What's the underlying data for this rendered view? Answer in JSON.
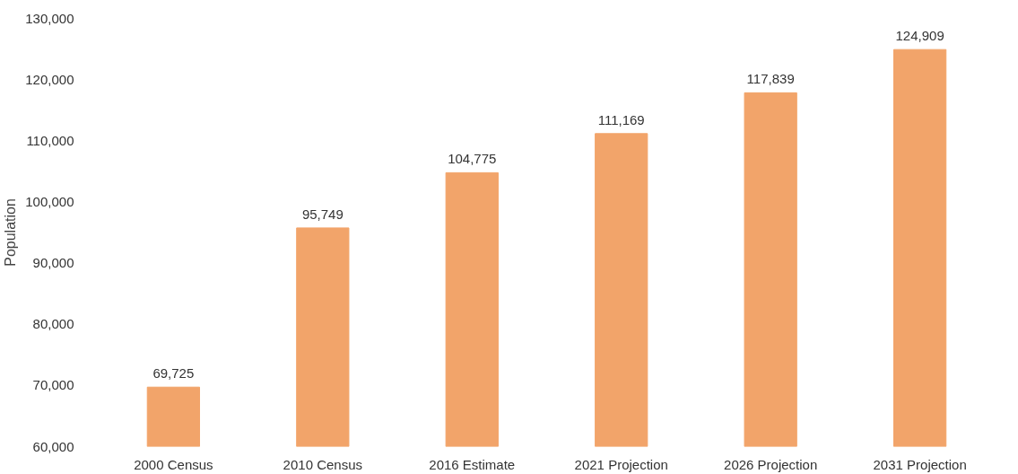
{
  "chart_data": {
    "type": "bar",
    "ylabel": "Population",
    "categories": [
      "2000 Census",
      "2010 Census",
      "2016 Estimate",
      "2021 Projection",
      "2026 Projection",
      "2031 Projection"
    ],
    "values": [
      69725,
      95749,
      104775,
      111169,
      117839,
      124909
    ],
    "color": "#f2a46a",
    "ylim": [
      60000,
      130000
    ],
    "yticks": [
      {
        "value": 60000,
        "label": "60,000"
      },
      {
        "value": 70000,
        "label": "70,000"
      },
      {
        "value": 80000,
        "label": "80,000"
      },
      {
        "value": 90000,
        "label": "90,000"
      },
      {
        "value": 100000,
        "label": "100,000"
      },
      {
        "value": 110000,
        "label": "110,000"
      },
      {
        "value": 120000,
        "label": "120,000"
      },
      {
        "value": 130000,
        "label": "130,000"
      }
    ],
    "value_labels": [
      "69,725",
      "95,749",
      "104,775",
      "111,169",
      "117,839",
      "124,909"
    ],
    "grid": false
  }
}
